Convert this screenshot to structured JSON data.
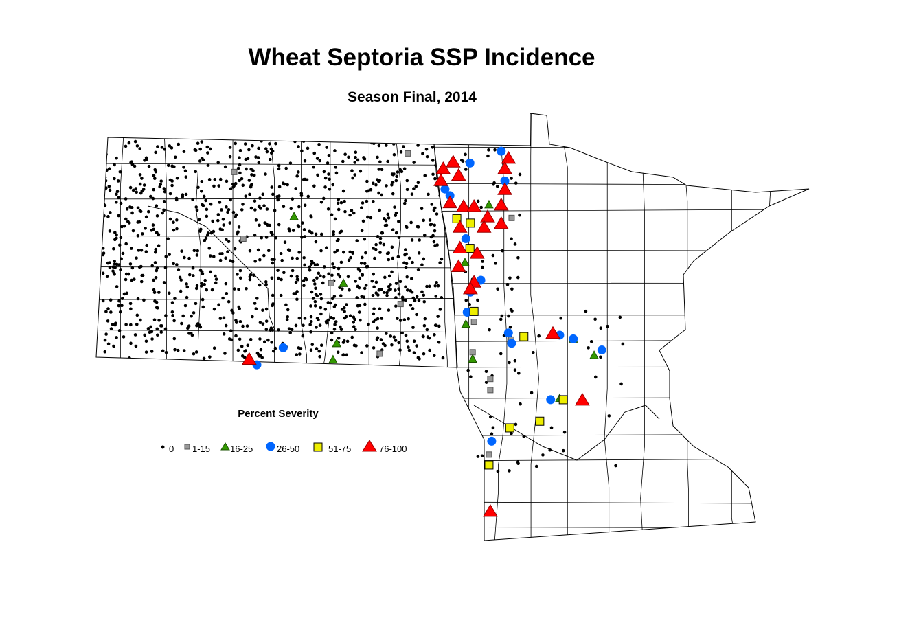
{
  "title": "Wheat Septoria SSP Incidence",
  "subtitle": "Season Final, 2014",
  "legend": {
    "title": "Percent Severity",
    "items": [
      {
        "label": "0",
        "symbol": "small-dot",
        "color": "#000000"
      },
      {
        "label": "1-15",
        "symbol": "square",
        "color": "#999999"
      },
      {
        "label": "16-25",
        "symbol": "triangle",
        "color": "#339900"
      },
      {
        "label": "26-50",
        "symbol": "circle",
        "color": "#0066FF"
      },
      {
        "label": "51-75",
        "symbol": "square",
        "color": "#EEEE00"
      },
      {
        "label": "76-100",
        "symbol": "triangle",
        "color": "#FF0000"
      }
    ]
  },
  "map": {
    "regions": [
      "North Dakota",
      "Minnesota"
    ],
    "boundaries": "county",
    "observations_lon_lat": {
      "76-100": [
        [
          -96.47,
          48.63
        ],
        [
          -96.25,
          48.72
        ],
        [
          -96.13,
          48.54
        ],
        [
          -96.52,
          48.47
        ],
        [
          -95.03,
          48.77
        ],
        [
          -95.11,
          48.63
        ],
        [
          -95.11,
          48.35
        ],
        [
          -96.32,
          48.17
        ],
        [
          -96.02,
          48.12
        ],
        [
          -95.79,
          48.12
        ],
        [
          -95.19,
          48.14
        ],
        [
          -95.49,
          47.98
        ],
        [
          -95.19,
          47.89
        ],
        [
          -95.57,
          47.84
        ],
        [
          -96.1,
          47.84
        ],
        [
          -96.1,
          47.56
        ],
        [
          -95.72,
          47.49
        ],
        [
          -96.13,
          47.31
        ],
        [
          -95.79,
          47.1
        ],
        [
          -95.87,
          47.01
        ],
        [
          -94.05,
          46.41
        ],
        [
          -93.4,
          45.51
        ],
        [
          -100.75,
          46.06
        ],
        [
          -95.43,
          44.01
        ]
      ],
      "26-50": [
        [
          -95.19,
          48.86
        ],
        [
          -95.88,
          48.7
        ],
        [
          -95.11,
          48.46
        ],
        [
          -96.43,
          48.35
        ],
        [
          -96.32,
          48.26
        ],
        [
          -95.97,
          47.68
        ],
        [
          -95.64,
          47.12
        ],
        [
          -95.87,
          46.96
        ],
        [
          -95.94,
          46.69
        ],
        [
          -95.03,
          46.41
        ],
        [
          -94.96,
          46.27
        ],
        [
          -93.9,
          46.38
        ],
        [
          -93.6,
          46.33
        ],
        [
          -92.97,
          46.18
        ],
        [
          -100.0,
          46.21
        ],
        [
          -100.58,
          45.98
        ],
        [
          -94.1,
          45.51
        ],
        [
          -95.4,
          44.95
        ]
      ],
      "51-75": [
        [
          -96.17,
          47.95
        ],
        [
          -95.87,
          47.89
        ],
        [
          -95.88,
          47.55
        ],
        [
          -95.79,
          46.7
        ],
        [
          -94.69,
          46.36
        ],
        [
          -93.82,
          45.51
        ],
        [
          -94.34,
          45.22
        ],
        [
          -95.0,
          45.13
        ],
        [
          -95.46,
          44.63
        ]
      ],
      "16-25": [
        [
          -99.76,
          47.98
        ],
        [
          -95.99,
          47.36
        ],
        [
          -98.67,
          47.08
        ],
        [
          -95.97,
          46.53
        ],
        [
          -98.82,
          46.27
        ],
        [
          -98.9,
          46.05
        ],
        [
          -95.82,
          46.06
        ],
        [
          -93.14,
          46.11
        ],
        [
          -93.9,
          45.53
        ],
        [
          -93.6,
          46.33
        ],
        [
          -95.46,
          48.14
        ]
      ],
      "1-15": [
        [
          -101.08,
          48.58
        ],
        [
          -97.25,
          48.83
        ],
        [
          -100.88,
          47.68
        ],
        [
          -98.94,
          47.08
        ],
        [
          -97.41,
          46.8
        ],
        [
          -95.79,
          46.56
        ],
        [
          -97.87,
          46.13
        ],
        [
          -95.82,
          46.15
        ],
        [
          -95.43,
          45.79
        ],
        [
          -95.43,
          45.64
        ],
        [
          -94.97,
          46.32
        ],
        [
          -94.96,
          47.96
        ],
        [
          -95.46,
          44.77
        ]
      ]
    }
  }
}
